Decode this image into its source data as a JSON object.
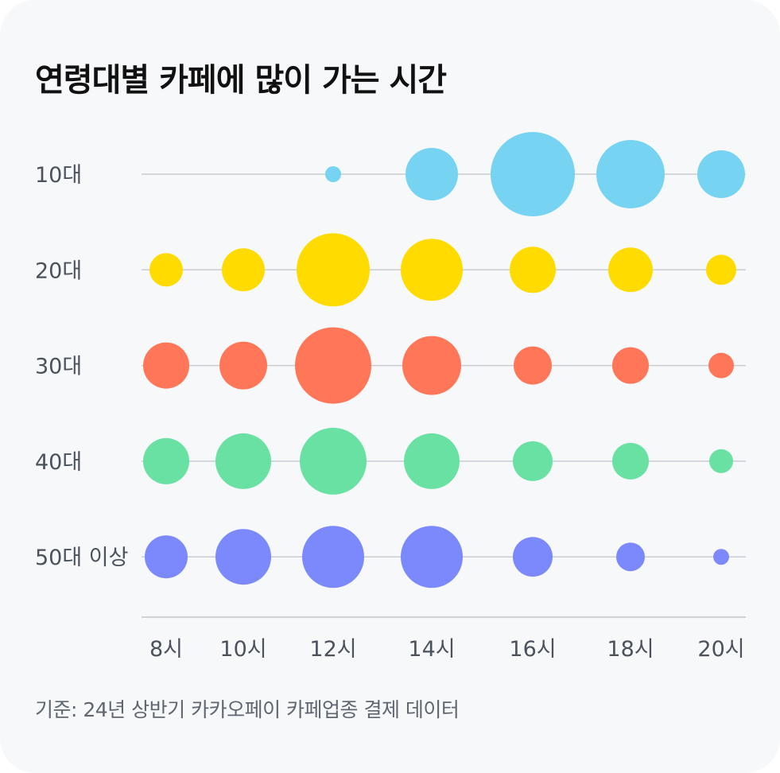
{
  "chart_data": {
    "type": "scatter",
    "subtype": "bubble",
    "title": "연령대별 카페에 많이 가는 시간",
    "xlabel": "",
    "ylabel": "",
    "categories": [
      "8시",
      "10시",
      "12시",
      "14시",
      "16시",
      "18시",
      "20시"
    ],
    "series": [
      {
        "name": "10대",
        "color": "#77d3f2",
        "values": [
          0,
          0,
          1.0,
          3.3,
          5.3,
          4.3,
          3.0
        ]
      },
      {
        "name": "20대",
        "color": "#ffdb00",
        "values": [
          2.1,
          2.7,
          4.6,
          3.9,
          2.9,
          2.8,
          1.9
        ]
      },
      {
        "name": "30대",
        "color": "#ff7659",
        "values": [
          2.9,
          3.0,
          4.8,
          3.7,
          2.4,
          2.3,
          1.6
        ]
      },
      {
        "name": "40대",
        "color": "#68e1a3",
        "values": [
          2.9,
          3.5,
          4.2,
          3.5,
          2.5,
          2.3,
          1.5
        ]
      },
      {
        "name": "50대 이상",
        "color": "#7b89fd",
        "values": [
          2.7,
          3.5,
          3.9,
          3.9,
          2.5,
          1.8,
          1.0
        ]
      }
    ],
    "grid": true,
    "legend": "none"
  },
  "footnote": "기준: 24년 상반기 카카오페이 카페업종 결제 데이터"
}
